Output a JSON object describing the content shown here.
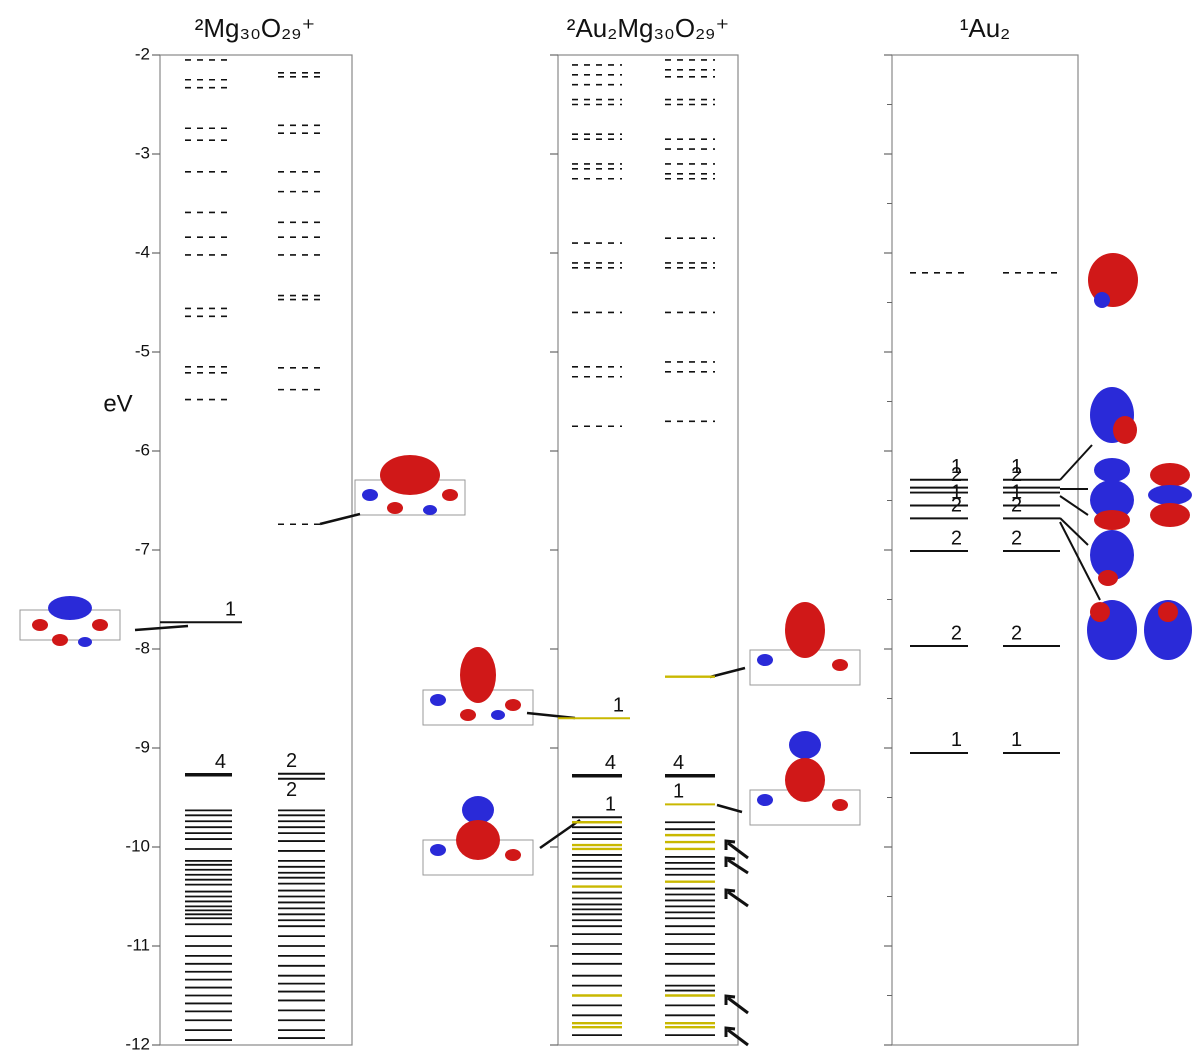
{
  "chart_data": {
    "type": "energy-levels",
    "ylabel": "eV",
    "ylim": [
      -12,
      -2
    ],
    "yticks": [
      -2,
      -3,
      -4,
      -5,
      -6,
      -7,
      -8,
      -9,
      -10,
      -11,
      -12
    ],
    "minor_yticks": [
      -2.5,
      -3.5,
      -4.5,
      -5.5,
      -6.5,
      -7.5,
      -8.5,
      -9.5,
      -10.5,
      -11.5
    ],
    "level_color": "#111111",
    "highlight_color": "#c9b800",
    "panels": [
      {
        "title": "²Mg₃₀O₂₉⁺",
        "columns": [
          {
            "unoccupied": [
              -2.05,
              -2.25,
              -2.33,
              -2.74,
              -2.86,
              -3.18,
              -3.59,
              -3.84,
              -4.02,
              -4.56,
              -4.64,
              -5.15,
              -5.21,
              -5.48
            ],
            "occupied": [
              -9.63,
              -9.68,
              -9.74,
              -9.8,
              -9.86,
              -9.92,
              -10.02,
              -10.14,
              -10.18,
              -10.23,
              -10.28,
              -10.33,
              -10.38,
              -10.45,
              -10.5,
              -10.55,
              -10.6,
              -10.64,
              -10.68,
              -10.72,
              -10.78,
              -10.9,
              -11.0,
              -11.1,
              -11.18,
              -11.26,
              -11.34,
              -11.42,
              -11.5,
              -11.58,
              -11.66,
              -11.75,
              -11.85,
              -11.95
            ],
            "highlight": [],
            "marked": [
              {
                "energy": -7.73,
                "occupancy": 1
              },
              {
                "energy": -9.27,
                "occupancy": 4
              }
            ]
          },
          {
            "unoccupied": [
              -2.18,
              -2.22,
              -2.71,
              -2.79,
              -3.18,
              -3.38,
              -3.69,
              -3.84,
              -4.02,
              -4.43,
              -4.47,
              -5.16,
              -5.38,
              -6.74
            ],
            "occupied": [
              -9.63,
              -9.68,
              -9.74,
              -9.8,
              -9.86,
              -9.94,
              -10.04,
              -10.14,
              -10.2,
              -10.26,
              -10.31,
              -10.37,
              -10.44,
              -10.5,
              -10.56,
              -10.62,
              -10.68,
              -10.74,
              -10.8,
              -10.9,
              -11.0,
              -11.1,
              -11.2,
              -11.3,
              -11.38,
              -11.46,
              -11.55,
              -11.65,
              -11.75,
              -11.85,
              -11.93
            ],
            "highlight": [],
            "marked": [
              {
                "energy": -9.26,
                "occupancy": 2
              },
              {
                "energy": -9.31,
                "occupancy": 2
              }
            ]
          }
        ]
      },
      {
        "title": "²Au₂Mg₃₀O₂₉⁺",
        "columns": [
          {
            "unoccupied": [
              -2.1,
              -2.2,
              -2.3,
              -2.45,
              -2.5,
              -2.8,
              -2.85,
              -3.1,
              -3.15,
              -3.25,
              -3.9,
              -4.1,
              -4.15,
              -4.6,
              -5.15,
              -5.25,
              -5.75
            ],
            "occupied": [
              -9.8,
              -9.86,
              -9.92,
              -10.08,
              -10.14,
              -10.2,
              -10.26,
              -10.32,
              -10.46,
              -10.52,
              -10.58,
              -10.63,
              -10.68,
              -10.74,
              -10.8,
              -10.88,
              -10.98,
              -11.08,
              -11.18,
              -11.3,
              -11.4,
              -11.6,
              -11.7,
              -11.9
            ],
            "highlight": [
              -9.75,
              -9.98,
              -10.02,
              -10.4,
              -11.5,
              -11.78,
              -11.82
            ],
            "marked": [
              {
                "energy": -8.7,
                "occupancy": 1,
                "color": "#c9b800"
              },
              {
                "energy": -9.28,
                "occupancy": 4
              },
              {
                "energy": -9.7,
                "occupancy": 1
              }
            ]
          },
          {
            "unoccupied": [
              -2.05,
              -2.15,
              -2.22,
              -2.45,
              -2.5,
              -2.85,
              -2.95,
              -3.1,
              -3.2,
              -3.25,
              -3.85,
              -4.1,
              -4.15,
              -4.6,
              -5.1,
              -5.2,
              -5.7
            ],
            "occupied": [
              -9.75,
              -9.82,
              -10.1,
              -10.16,
              -10.22,
              -10.28,
              -10.42,
              -10.48,
              -10.54,
              -10.6,
              -10.66,
              -10.72,
              -10.8,
              -10.88,
              -10.98,
              -11.08,
              -11.18,
              -11.3,
              -11.4,
              -11.45,
              -11.6,
              -11.7,
              -11.9
            ],
            "highlight": [
              -8.28,
              -9.88,
              -9.95,
              -10.02,
              -10.35,
              -11.5,
              -11.78,
              -11.82
            ],
            "marked": [
              {
                "energy": -9.28,
                "occupancy": 4
              },
              {
                "energy": -9.57,
                "occupancy": 1,
                "color": "#c9b800"
              }
            ]
          }
        ]
      },
      {
        "title": "¹Au₂",
        "columns": [
          {
            "unoccupied": [
              -4.2
            ],
            "occupied": [
              -6.42
            ],
            "highlight": [],
            "marked": [
              {
                "energy": -6.29,
                "occupancy": 1
              },
              {
                "energy": -6.37,
                "occupancy": 2
              },
              {
                "energy": -6.55,
                "occupancy": 1
              },
              {
                "energy": -6.68,
                "occupancy": 2
              },
              {
                "energy": -7.01,
                "occupancy": 2
              },
              {
                "energy": -7.97,
                "occupancy": 2
              },
              {
                "energy": -9.05,
                "occupancy": 1
              }
            ]
          },
          {
            "unoccupied": [
              -4.2
            ],
            "occupied": [
              -6.42
            ],
            "highlight": [],
            "marked": [
              {
                "energy": -6.29,
                "occupancy": 1
              },
              {
                "energy": -6.37,
                "occupancy": 2
              },
              {
                "energy": -6.55,
                "occupancy": 1
              },
              {
                "energy": -6.68,
                "occupancy": 2
              },
              {
                "energy": -7.01,
                "occupancy": 2
              },
              {
                "energy": -7.97,
                "occupancy": 2
              },
              {
                "energy": -9.05,
                "occupancy": 1
              }
            ]
          }
        ]
      }
    ]
  }
}
